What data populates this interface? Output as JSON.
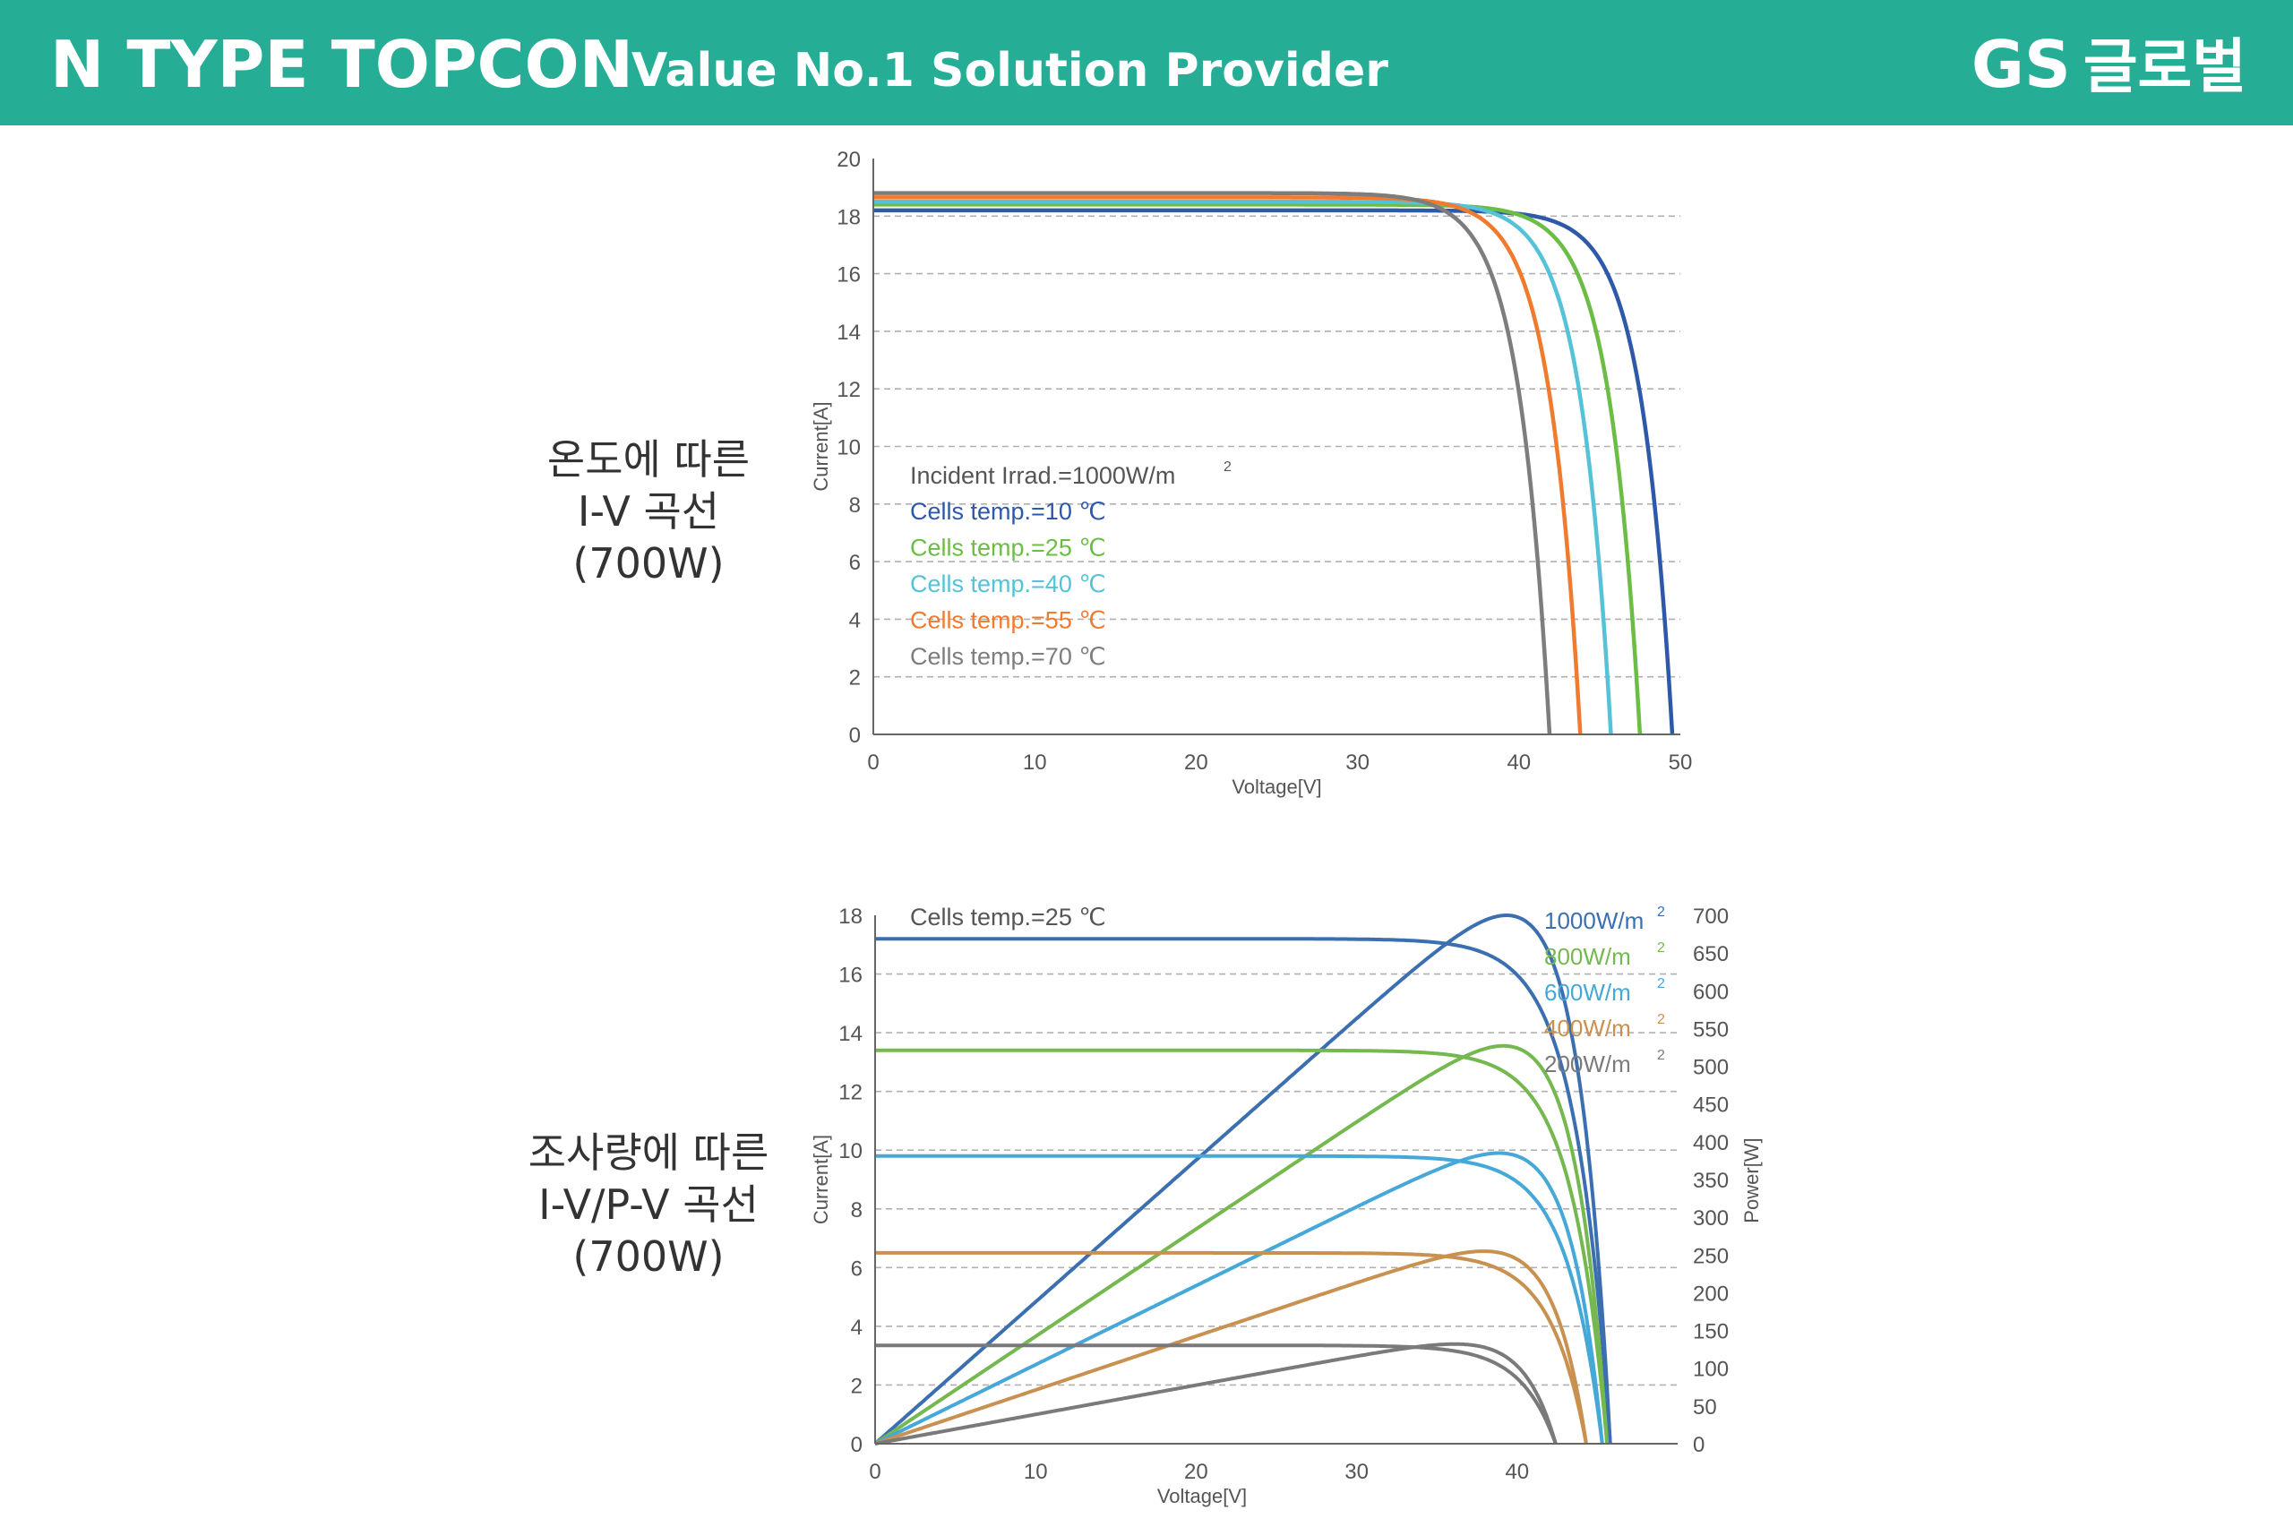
{
  "header": {
    "title": "N TYPE TOPCON",
    "subtitle": "Value No.1 Solution Provider",
    "logo_latin": "GS",
    "logo_korean": "글로벌"
  },
  "labels": {
    "chart1": [
      "온도에 따른",
      "I-V 곡선",
      "(700W)"
    ],
    "chart2": [
      "조사량에 따른",
      "I-V/P-V 곡선",
      "(700W)"
    ]
  },
  "chart_data": [
    {
      "type": "line",
      "xlabel": "Voltage[V]",
      "ylabel": "Current[A]",
      "xlim": [
        0,
        50
      ],
      "ylim": [
        0,
        20
      ],
      "xticks": [
        0,
        10,
        20,
        30,
        40,
        50
      ],
      "yticks": [
        0,
        2,
        4,
        6,
        8,
        10,
        12,
        14,
        16,
        18,
        20
      ],
      "grid": "horizontal-dashed",
      "legend_position": "center-left",
      "legend_title": "Incident Irrad.=1000W/m",
      "legend_title_sup": "2",
      "series": [
        {
          "name": "Cells temp.=10 ℃",
          "color": "#2e58a8",
          "isc": 18.2,
          "voc": 49.5
        },
        {
          "name": "Cells temp.=25 ℃",
          "color": "#6cbd45",
          "isc": 18.4,
          "voc": 47.5
        },
        {
          "name": "Cells temp.=40 ℃",
          "color": "#55c2d8",
          "isc": 18.5,
          "voc": 45.7
        },
        {
          "name": "Cells temp.=55 ℃",
          "color": "#f07a2e",
          "isc": 18.65,
          "voc": 43.8
        },
        {
          "name": "Cells temp.=70 ℃",
          "color": "#7d7d7d",
          "isc": 18.8,
          "voc": 41.9
        }
      ]
    },
    {
      "type": "line",
      "xlabel": "Voltage[V]",
      "ylabel": "Current[A]",
      "y2label": "Power[W]",
      "xlim": [
        0,
        50
      ],
      "ylim": [
        0,
        18
      ],
      "y2lim": [
        0,
        700
      ],
      "xticks": [
        0,
        10,
        20,
        30,
        40
      ],
      "yticks": [
        0,
        2,
        4,
        6,
        8,
        10,
        12,
        14,
        16,
        18
      ],
      "y2ticks": [
        0,
        50,
        100,
        150,
        200,
        250,
        300,
        350,
        400,
        450,
        500,
        550,
        600,
        650,
        700
      ],
      "grid": "horizontal-dashed",
      "legend_position": "top-right",
      "annotation": "Cells temp.=25 ℃",
      "legend_sup": "2",
      "series": [
        {
          "name": "1000W/m",
          "color": "#3b6fb0",
          "isc": 17.2,
          "voc": 45.8,
          "pmax": 700
        },
        {
          "name": "800W/m",
          "color": "#74b84f",
          "isc": 13.4,
          "voc": 45.6,
          "pmax": 527
        },
        {
          "name": "600W/m",
          "color": "#45a8d8",
          "isc": 9.8,
          "voc": 45.3,
          "pmax": 385
        },
        {
          "name": "400W/m",
          "color": "#c99150",
          "isc": 6.5,
          "voc": 44.3,
          "pmax": 255
        },
        {
          "name": "200W/m",
          "color": "#7a7a7a",
          "isc": 3.35,
          "voc": 42.4,
          "pmax": 132
        }
      ]
    }
  ]
}
